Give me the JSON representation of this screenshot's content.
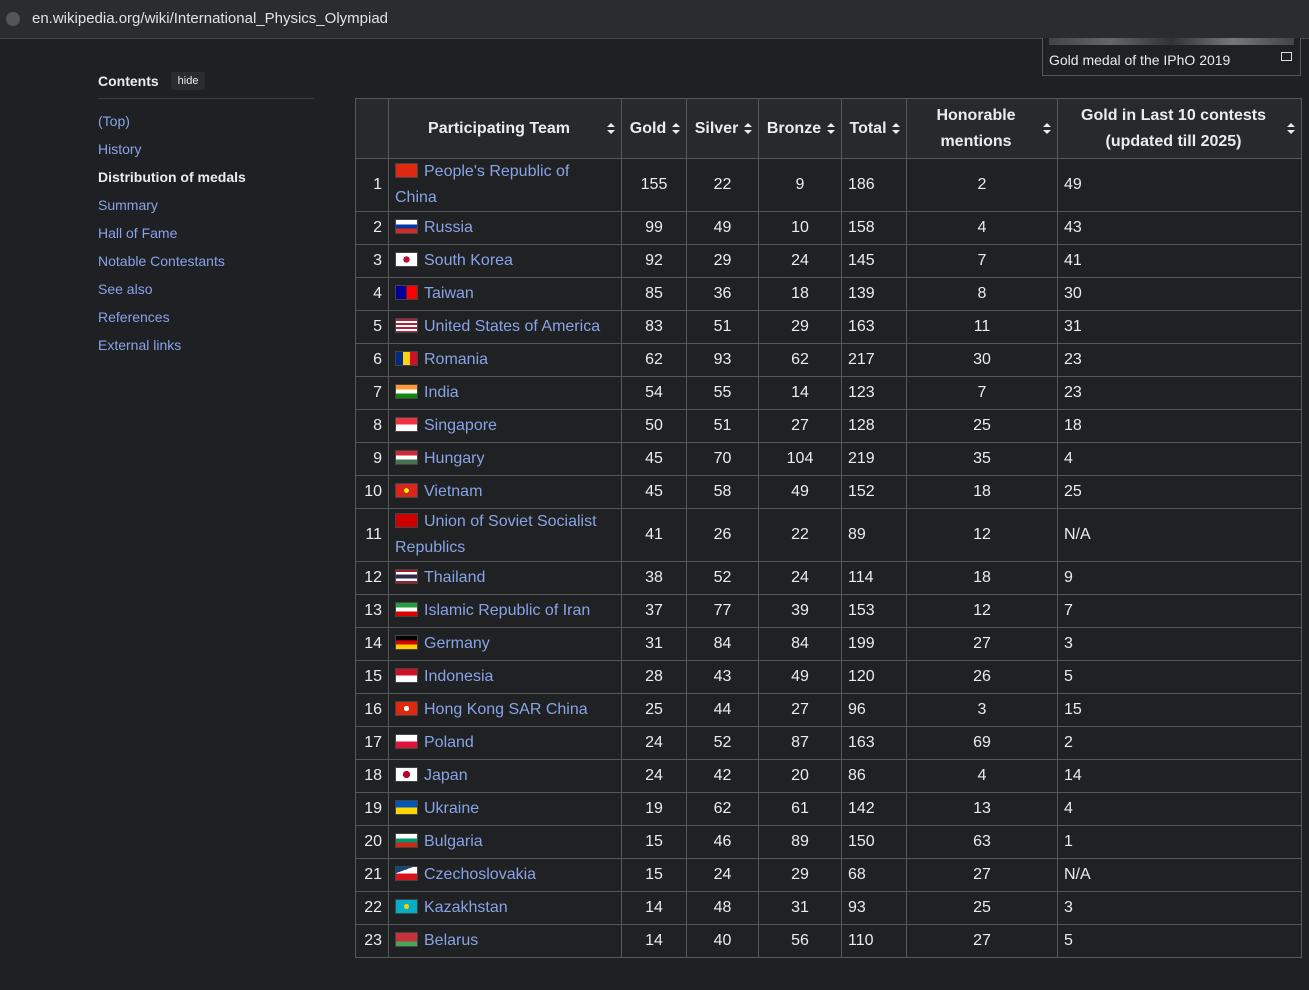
{
  "browser": {
    "url": "en.wikipedia.org/wiki/International_Physics_Olympiad"
  },
  "toc": {
    "title": "Contents",
    "hide": "hide",
    "items": [
      "(Top)",
      "History",
      "Distribution of medals",
      "Summary",
      "Hall of Fame",
      "Notable Contestants",
      "See also",
      "References",
      "External links"
    ],
    "active": 2
  },
  "figure": {
    "caption": "Gold medal of the IPhO 2019"
  },
  "table": {
    "headers": [
      "",
      "Participating Team",
      "Gold",
      "Silver",
      "Bronze",
      "Total",
      "Honorable mentions",
      "Gold in Last 10 contests (updated till 2025)"
    ],
    "rows": [
      [
        1,
        "People's Republic of China",
        155,
        22,
        9,
        186,
        2,
        49
      ],
      [
        2,
        "Russia",
        99,
        49,
        10,
        158,
        4,
        43
      ],
      [
        3,
        "South Korea",
        92,
        29,
        24,
        145,
        7,
        41
      ],
      [
        4,
        "Taiwan",
        85,
        36,
        18,
        139,
        8,
        30
      ],
      [
        5,
        "United States of America",
        83,
        51,
        29,
        163,
        11,
        31
      ],
      [
        6,
        "Romania",
        62,
        93,
        62,
        217,
        30,
        23
      ],
      [
        7,
        "India",
        54,
        55,
        14,
        123,
        7,
        23
      ],
      [
        8,
        "Singapore",
        50,
        51,
        27,
        128,
        25,
        18
      ],
      [
        9,
        "Hungary",
        45,
        70,
        104,
        219,
        35,
        4
      ],
      [
        10,
        "Vietnam",
        45,
        58,
        49,
        152,
        18,
        25
      ],
      [
        11,
        "Union of Soviet Socialist Republics",
        41,
        26,
        22,
        89,
        12,
        "N/A"
      ],
      [
        12,
        "Thailand",
        38,
        52,
        24,
        114,
        18,
        9
      ],
      [
        13,
        "Islamic Republic of Iran",
        37,
        77,
        39,
        153,
        12,
        7
      ],
      [
        14,
        "Germany",
        31,
        84,
        84,
        199,
        27,
        3
      ],
      [
        15,
        "Indonesia",
        28,
        43,
        49,
        120,
        26,
        5
      ],
      [
        16,
        "Hong Kong SAR China",
        25,
        44,
        27,
        96,
        3,
        15
      ],
      [
        17,
        "Poland",
        24,
        52,
        87,
        163,
        69,
        2
      ],
      [
        18,
        "Japan",
        24,
        42,
        20,
        86,
        4,
        14
      ],
      [
        19,
        "Ukraine",
        19,
        62,
        61,
        142,
        13,
        4
      ],
      [
        20,
        "Bulgaria",
        15,
        46,
        89,
        150,
        63,
        1
      ],
      [
        21,
        "Czechoslovakia",
        15,
        24,
        29,
        68,
        27,
        "N/A"
      ],
      [
        22,
        "Kazakhstan",
        14,
        48,
        31,
        93,
        25,
        3
      ],
      [
        23,
        "Belarus",
        14,
        40,
        56,
        110,
        27,
        5
      ]
    ]
  }
}
